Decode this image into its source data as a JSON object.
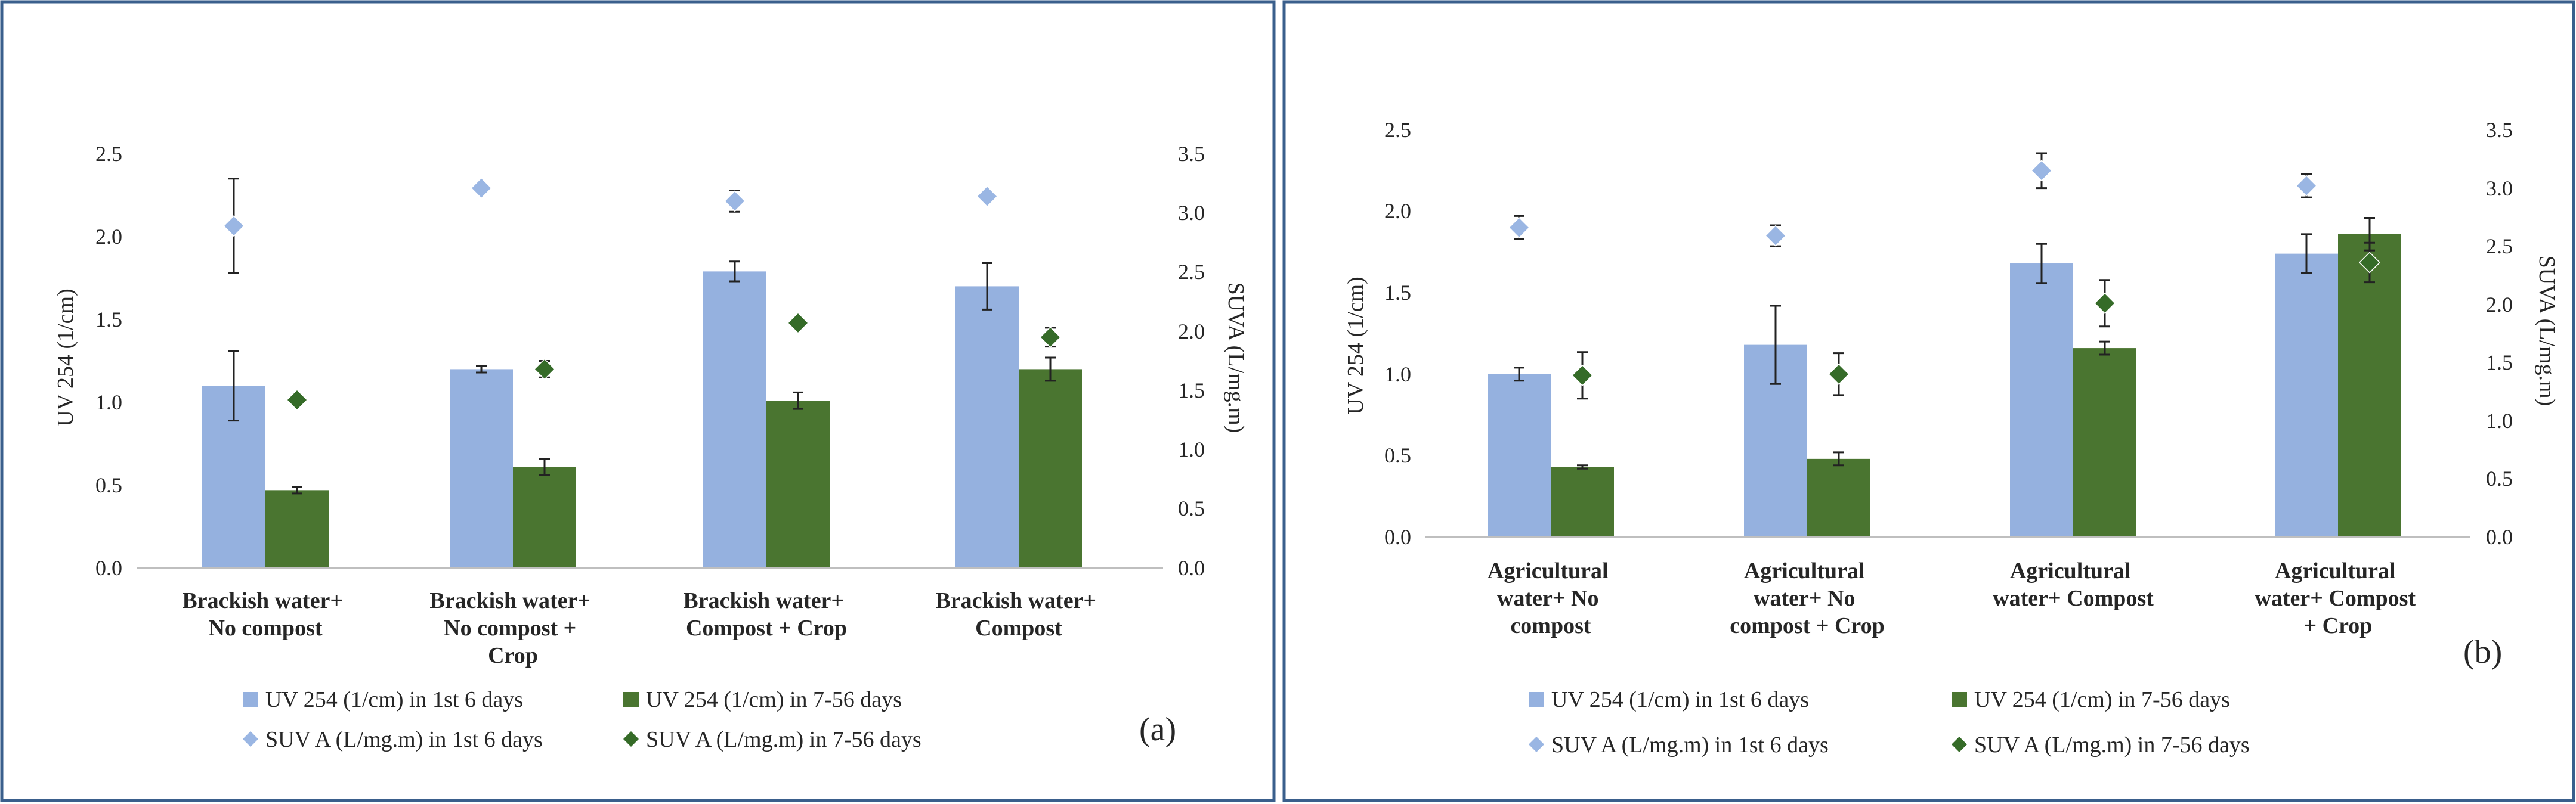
{
  "colors": {
    "uv_first": "#95b1df",
    "uv_later": "#4a7530",
    "suva_first": "#9ab6e3",
    "suva_later": "#356b28",
    "frame": "#3a5f8c",
    "error": "#222222"
  },
  "chart_data": [
    {
      "type": "bar",
      "panel_label": "(a)",
      "categories": [
        [
          "Brackish water+",
          "No compost"
        ],
        [
          "Brackish water+",
          "No compost +",
          "Crop"
        ],
        [
          "Brackish water+",
          "Compost + Crop"
        ],
        [
          "Brackish water+",
          "Compost"
        ]
      ],
      "ylabel": "UV 254 (1/cm)",
      "y2label": "SUVA  (L/mg.m)",
      "ylim": [
        0,
        2.5
      ],
      "y_ticks": [
        "0.0",
        "0.5",
        "1.0",
        "1.5",
        "2.0",
        "2.5"
      ],
      "y2lim": [
        0,
        3.5
      ],
      "y2_ticks": [
        "0.0",
        "0.5",
        "1.0",
        "1.5",
        "2.0",
        "2.5",
        "3.0",
        "3.5"
      ],
      "bar_series": [
        {
          "name": "UV 254 (1/cm) in 1st 6 days",
          "values": [
            1.1,
            1.2,
            1.79,
            1.7
          ],
          "errors": [
            0.21,
            0.02,
            0.06,
            0.14
          ]
        },
        {
          "name": "UV 254 (1/cm) in 7-56 days",
          "values": [
            0.47,
            0.61,
            1.01,
            1.2
          ],
          "errors": [
            0.02,
            0.05,
            0.05,
            0.07
          ]
        }
      ],
      "marker_series": [
        {
          "name": "SUVA (L/mg.m) in 1st 6 days",
          "values": [
            2.89,
            3.21,
            3.1,
            3.14
          ],
          "errors": [
            0.4,
            0.0,
            0.09,
            0.04
          ]
        },
        {
          "name": "SUVA (L/mg.m) in 7-56 days",
          "values": [
            1.42,
            1.68,
            2.07,
            1.95
          ],
          "errors": [
            0.0,
            0.07,
            0.0,
            0.08
          ]
        }
      ],
      "legend": [
        "UV 254 (1/cm) in 1st 6 days",
        "UV 254 (1/cm) in 7-56 days",
        "SUV A (L/mg.m) in 1st 6 days",
        "SUV A (L/mg.m) in 7-56 days"
      ]
    },
    {
      "type": "bar",
      "panel_label": "(b)",
      "categories": [
        [
          "Agricultural",
          "water+  No",
          "compost"
        ],
        [
          "Agricultural",
          "water+  No",
          "compost + Crop"
        ],
        [
          "Agricultural",
          "water+  Compost"
        ],
        [
          "Agricultural",
          "water+  Compost",
          "+ Crop"
        ]
      ],
      "ylabel": "UV 254 (1/cm)",
      "y2label": "SUVA  (L/mg.m)",
      "ylim": [
        0,
        2.5
      ],
      "y_ticks": [
        "0.0",
        "0.5",
        "1.0",
        "1.5",
        "2.0",
        "2.5"
      ],
      "y2lim": [
        0,
        3.5
      ],
      "y2_ticks": [
        "0.0",
        "0.5",
        "1.0",
        "1.5",
        "2.0",
        "2.5",
        "3.0",
        "3.5"
      ],
      "bar_series": [
        {
          "name": "UV 254 (1/cm) in 1st 6 days",
          "values": [
            1.0,
            1.18,
            1.68,
            1.74
          ],
          "errors": [
            0.04,
            0.24,
            0.12,
            0.12
          ]
        },
        {
          "name": "UV 254 (1/cm) in 7-56 days",
          "values": [
            0.43,
            0.48,
            1.16,
            1.86
          ],
          "errors": [
            0.01,
            0.04,
            0.04,
            0.1
          ]
        }
      ],
      "marker_series": [
        {
          "name": "SUVA (L/mg.m) in 1st 6 days",
          "values": [
            2.66,
            2.59,
            3.15,
            3.02
          ],
          "errors": [
            0.1,
            0.09,
            0.15,
            0.1
          ]
        },
        {
          "name": "SUVA (L/mg.m) in 7-56 days",
          "values": [
            1.39,
            1.4,
            2.01,
            2.36
          ],
          "errors": [
            0.2,
            0.18,
            0.2,
            0.17
          ]
        }
      ],
      "legend": [
        "UV 254 (1/cm) in 1st 6 days",
        "UV 254 (1/cm) in 7-56 days",
        "SUV A (L/mg.m) in 1st 6 days",
        "SUV A (L/mg.m) in 7-56 days"
      ]
    }
  ]
}
